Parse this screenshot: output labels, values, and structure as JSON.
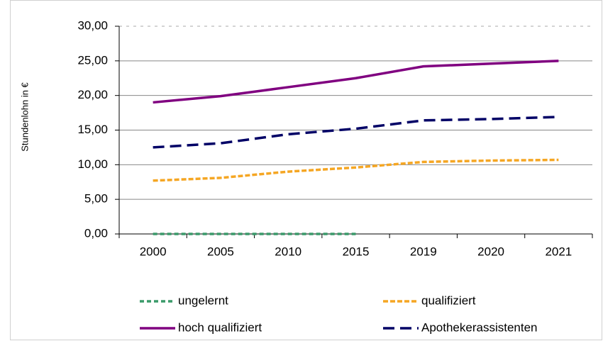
{
  "chart_data": {
    "type": "line",
    "y_label": "Stundenlohn in €",
    "categories": [
      "2000",
      "2005",
      "2010",
      "2015",
      "2019",
      "2020",
      "2021"
    ],
    "series": [
      {
        "name": "ungelernt",
        "color": "#3a9a6a",
        "values": [
          0,
          0,
          0,
          0,
          null,
          null,
          null
        ]
      },
      {
        "name": "qualifiziert",
        "color": "#f5a623",
        "values": [
          7.7,
          8.1,
          9.0,
          9.6,
          10.4,
          10.6,
          10.7
        ]
      },
      {
        "name": "hoch qualifiziert",
        "color": "#800080",
        "values": [
          19.0,
          19.9,
          21.2,
          22.5,
          24.2,
          24.6,
          25.0
        ]
      },
      {
        "name": "Apothekerassistenten",
        "color": "#000066",
        "values": [
          12.5,
          13.1,
          14.4,
          15.2,
          16.4,
          16.6,
          16.9
        ]
      }
    ],
    "ylim": [
      0,
      30
    ],
    "yticks": [
      {
        "value": 0,
        "label": "0,00"
      },
      {
        "value": 5,
        "label": "5,00"
      },
      {
        "value": 10,
        "label": "10,00"
      },
      {
        "value": 15,
        "label": "15,00"
      },
      {
        "value": 20,
        "label": "20,00"
      },
      {
        "value": 25,
        "label": "25,00"
      },
      {
        "value": 30,
        "label": "30,00"
      }
    ],
    "grid": true
  }
}
